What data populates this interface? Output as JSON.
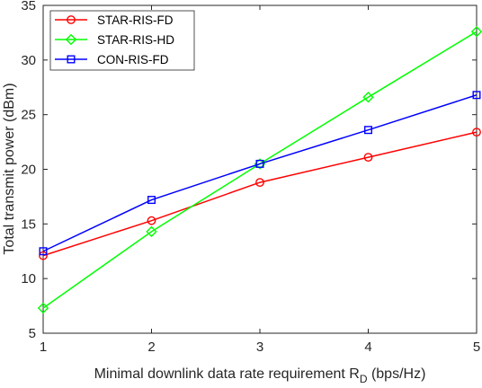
{
  "chart_data": {
    "type": "line",
    "title": "",
    "xlabel": "Minimal downlink data rate requirement R",
    "xlabel_subscript": "D",
    "xlabel_suffix": " (bps/Hz)",
    "ylabel": "Total transmit power (dBm)",
    "x": [
      1,
      2,
      3,
      4,
      5
    ],
    "xlim": [
      1,
      5
    ],
    "ylim": [
      5,
      35
    ],
    "xticks": [
      "1",
      "2",
      "3",
      "4",
      "5"
    ],
    "yticks": [
      "5",
      "10",
      "15",
      "20",
      "25",
      "30",
      "35"
    ],
    "grid": false,
    "legend_position": "top-left",
    "series": [
      {
        "name": "STAR-RIS-FD",
        "color": "#ff0000",
        "marker": "circle",
        "values": [
          12.1,
          15.3,
          18.8,
          21.1,
          23.4
        ]
      },
      {
        "name": "STAR-RIS-HD",
        "color": "#00ff00",
        "marker": "diamond",
        "values": [
          7.3,
          14.3,
          20.5,
          26.6,
          32.6
        ]
      },
      {
        "name": "CON-RIS-FD",
        "color": "#0000ff",
        "marker": "square",
        "values": [
          12.5,
          17.2,
          20.5,
          23.6,
          26.8
        ]
      }
    ]
  }
}
